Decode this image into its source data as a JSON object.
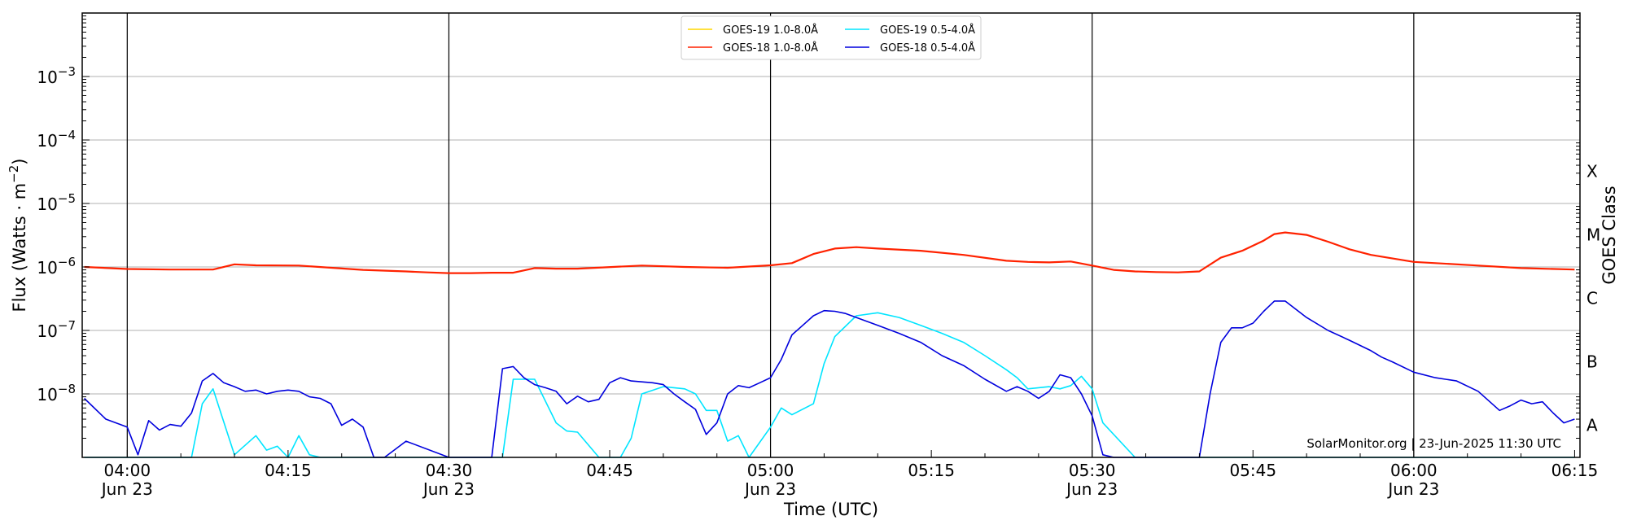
{
  "chart_data": {
    "type": "line",
    "xlabel": "Time (UTC)",
    "ylabel": "Flux (Watts · m",
    "ylabel_sup": "−2",
    "ylabel_close": ")",
    "right_label": "GOES Class",
    "y_scale": "log",
    "ylim": [
      1e-09,
      0.01
    ],
    "xlim_minutes": [
      235.8,
      375.5
    ],
    "x_ticks": [
      {
        "t": 240,
        "label": "04:00",
        "sub": "Jun 23"
      },
      {
        "t": 255,
        "label": "04:15",
        "sub": ""
      },
      {
        "t": 270,
        "label": "04:30",
        "sub": "Jun 23"
      },
      {
        "t": 285,
        "label": "04:45",
        "sub": ""
      },
      {
        "t": 300,
        "label": "05:00",
        "sub": "Jun 23"
      },
      {
        "t": 315,
        "label": "05:15",
        "sub": ""
      },
      {
        "t": 330,
        "label": "05:30",
        "sub": "Jun 23"
      },
      {
        "t": 345,
        "label": "05:45",
        "sub": ""
      },
      {
        "t": 360,
        "label": "06:00",
        "sub": "Jun 23"
      },
      {
        "t": 375,
        "label": "06:15",
        "sub": ""
      }
    ],
    "vertical_lines_minutes": [
      240,
      270,
      300,
      330,
      360
    ],
    "y_ticks": [
      {
        "exp": -3,
        "base": "10",
        "sup": "−3"
      },
      {
        "exp": -4,
        "base": "10",
        "sup": "−4"
      },
      {
        "exp": -5,
        "base": "10",
        "sup": "−5"
      },
      {
        "exp": -6,
        "base": "10",
        "sup": "−6"
      },
      {
        "exp": -7,
        "base": "10",
        "sup": "−7"
      },
      {
        "exp": -8,
        "base": "10",
        "sup": "−8"
      }
    ],
    "goes_classes": [
      {
        "label": "X",
        "exp": -4
      },
      {
        "label": "M",
        "exp": -5
      },
      {
        "label": "C",
        "exp": -6
      },
      {
        "label": "B",
        "exp": -7
      },
      {
        "label": "A",
        "exp": -8
      }
    ],
    "legend": [
      {
        "label": "GOES-19 1.0-8.0Å",
        "color": "#ffd700"
      },
      {
        "label": "GOES-19 0.5-4.0Å",
        "color": "#00e5ff"
      },
      {
        "label": "GOES-18 1.0-8.0Å",
        "color": "#ff2200"
      },
      {
        "label": "GOES-18 0.5-4.0Å",
        "color": "#0000dd"
      }
    ],
    "watermark": "SolarMonitor.org | 23-Jun-2025 11:30 UTC",
    "series": [
      {
        "name": "GOES-18 1.0-8.0Å",
        "color": "#ff2200",
        "width": 2.2,
        "x": [
          236,
          240,
          244,
          248,
          250,
          252,
          256,
          262,
          266,
          268,
          270,
          272,
          274,
          276,
          278,
          280,
          282,
          288,
          292,
          296,
          300,
          302,
          304,
          306,
          308,
          310,
          314,
          318,
          322,
          324,
          326,
          328,
          330,
          332,
          334,
          336,
          338,
          340,
          342,
          344,
          346,
          347,
          348,
          350,
          352,
          354,
          356,
          360,
          366,
          370,
          375
        ],
        "y": [
          1e-06,
          9.3e-07,
          9.1e-07,
          9.1e-07,
          1.1e-06,
          1.06e-06,
          1.05e-06,
          9e-07,
          8.5e-07,
          8.2e-07,
          8e-07,
          8e-07,
          8.1e-07,
          8.1e-07,
          9.6e-07,
          9.4e-07,
          9.4e-07,
          1.05e-06,
          1e-06,
          9.7e-07,
          1.06e-06,
          1.15e-06,
          1.6e-06,
          1.95e-06,
          2.05e-06,
          1.95e-06,
          1.8e-06,
          1.55e-06,
          1.25e-06,
          1.2e-06,
          1.18e-06,
          1.22e-06,
          1.05e-06,
          9e-07,
          8.5e-07,
          8.3e-07,
          8.2e-07,
          8.5e-07,
          1.4e-06,
          1.8e-06,
          2.6e-06,
          3.3e-06,
          3.5e-06,
          3.2e-06,
          2.5e-06,
          1.9e-06,
          1.55e-06,
          1.2e-06,
          1.05e-06,
          9.6e-07,
          9.1e-07
        ]
      },
      {
        "name": "GOES-19 0.5-4.0Å",
        "color": "#00e5ff",
        "width": 1.6,
        "x": [
          236,
          238,
          240,
          244,
          246,
          247,
          248,
          250,
          252,
          253,
          254,
          255,
          256,
          257,
          258,
          259,
          260,
          262,
          266,
          270,
          274,
          275,
          276,
          278,
          280,
          281,
          282,
          284,
          285,
          286,
          287,
          288,
          290,
          292,
          293,
          294,
          295,
          296,
          297,
          298,
          300,
          301,
          302,
          304,
          305,
          306,
          308,
          310,
          312,
          314,
          316,
          318,
          320,
          322,
          323,
          324,
          326,
          327,
          328,
          329,
          330,
          331,
          334,
          337,
          338,
          339,
          340,
          342,
          343,
          344,
          346,
          348,
          350,
          352,
          354,
          356,
          358,
          360,
          362,
          364,
          366,
          368,
          370,
          372,
          373,
          374,
          375
        ],
        "y": [
          9e-10,
          9e-10,
          9e-10,
          9e-10,
          9e-10,
          7e-09,
          1.2e-08,
          1.1e-09,
          2.2e-09,
          1.3e-09,
          1.5e-09,
          1e-09,
          2.2e-09,
          1.1e-09,
          9e-10,
          9e-10,
          9e-10,
          9e-10,
          9e-10,
          9e-10,
          9e-10,
          9e-10,
          1.7e-08,
          1.7e-08,
          3.5e-09,
          2.6e-09,
          2.5e-09,
          9e-10,
          9e-10,
          9e-10,
          2e-09,
          1e-08,
          1.3e-08,
          1.2e-08,
          1e-08,
          5.5e-09,
          5.5e-09,
          1.8e-09,
          2.2e-09,
          1e-09,
          3e-09,
          6e-09,
          4.7e-09,
          7e-09,
          3e-08,
          8e-08,
          1.7e-07,
          1.9e-07,
          1.6e-07,
          1.2e-07,
          9e-08,
          6.5e-08,
          4e-08,
          2.4e-08,
          1.8e-08,
          1.2e-08,
          1.3e-08,
          1.2e-08,
          1.35e-08,
          1.9e-08,
          1.2e-08,
          3.5e-09,
          9e-10,
          9e-10,
          9e-10,
          9e-10,
          9e-10,
          9e-10,
          9e-10,
          9e-10,
          9e-10,
          9e-10,
          9e-10,
          9e-10,
          9e-10,
          9e-10,
          9e-10,
          9e-10,
          9e-10,
          9e-10,
          9e-10,
          9e-10,
          9e-10,
          9e-10,
          9e-10,
          9e-10,
          9e-10
        ]
      },
      {
        "name": "GOES-18 0.5-4.0Å",
        "color": "#0000dd",
        "width": 1.6,
        "x": [
          236,
          238,
          240,
          241,
          242,
          243,
          244,
          245,
          246,
          247,
          248,
          249,
          250,
          251,
          252,
          253,
          254,
          255,
          256,
          257,
          258,
          259,
          260,
          261,
          262,
          263,
          264,
          266,
          270,
          273,
          274,
          275,
          276,
          277,
          278,
          279,
          280,
          281,
          282,
          283,
          284,
          285,
          286,
          287,
          288,
          289,
          290,
          291,
          292,
          293,
          294,
          295,
          296,
          297,
          298,
          299,
          300,
          301,
          302,
          303,
          304,
          305,
          306,
          307,
          308,
          310,
          312,
          314,
          316,
          318,
          320,
          322,
          323,
          324,
          325,
          326,
          327,
          328,
          329,
          330,
          331,
          332,
          334,
          336,
          338,
          339,
          340,
          341,
          342,
          343,
          344,
          345,
          346,
          347,
          348,
          350,
          352,
          354,
          356,
          357,
          358,
          360,
          362,
          364,
          366,
          368,
          369,
          370,
          371,
          372,
          373,
          374,
          375
        ],
        "y": [
          8.5e-09,
          4e-09,
          3e-09,
          1.1e-09,
          3.8e-09,
          2.7e-09,
          3.3e-09,
          3.1e-09,
          5e-09,
          1.6e-08,
          2.1e-08,
          1.5e-08,
          1.3e-08,
          1.1e-08,
          1.15e-08,
          1e-08,
          1.1e-08,
          1.15e-08,
          1.1e-08,
          9e-09,
          8.5e-09,
          7e-09,
          3.2e-09,
          4e-09,
          3e-09,
          9e-10,
          9e-10,
          1.8e-09,
          9e-10,
          9e-10,
          9e-10,
          2.5e-08,
          2.7e-08,
          1.8e-08,
          1.4e-08,
          1.25e-08,
          1.1e-08,
          7e-09,
          9.2e-09,
          7.5e-09,
          8.2e-09,
          1.5e-08,
          1.8e-08,
          1.6e-08,
          1.55e-08,
          1.5e-08,
          1.4e-08,
          1e-08,
          7.5e-09,
          5.7e-09,
          2.3e-09,
          3.5e-09,
          1e-08,
          1.35e-08,
          1.25e-08,
          1.5e-08,
          1.8e-08,
          3.5e-08,
          8.5e-08,
          1.2e-07,
          1.7e-07,
          2.05e-07,
          2e-07,
          1.85e-07,
          1.6e-07,
          1.2e-07,
          9e-08,
          6.5e-08,
          4e-08,
          2.8e-08,
          1.7e-08,
          1.1e-08,
          1.3e-08,
          1.1e-08,
          8.5e-09,
          1.1e-08,
          2e-08,
          1.8e-08,
          1e-08,
          4.5e-09,
          1.1e-09,
          9e-10,
          9e-10,
          9e-10,
          9e-10,
          9e-10,
          9e-10,
          1e-08,
          6.5e-08,
          1.1e-07,
          1.1e-07,
          1.3e-07,
          2e-07,
          2.9e-07,
          2.9e-07,
          1.6e-07,
          1e-07,
          7e-08,
          4.8e-08,
          3.8e-08,
          3.2e-08,
          2.2e-08,
          1.8e-08,
          1.6e-08,
          1.1e-08,
          5.5e-09,
          6.5e-09,
          8e-09,
          7e-09,
          7.5e-09,
          5e-09,
          3.5e-09,
          4e-09
        ]
      }
    ]
  }
}
